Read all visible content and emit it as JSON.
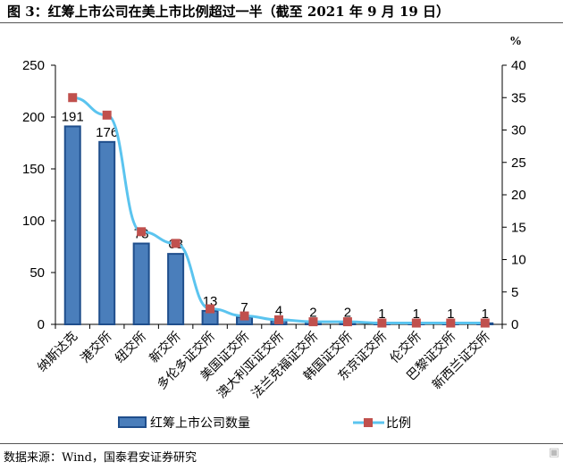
{
  "title": "图 3：红筹上市公司在美上市比例超过一半（截至 2021 年 9 月 19 日）",
  "source": "数据来源：Wind，国泰君安证券研究",
  "watermark": "格隆汇",
  "colors": {
    "bar": "#4a7ebb",
    "bar_border": "#1f4e8c",
    "line": "#5bc4ef",
    "marker": "#c0504d"
  },
  "chart_data": {
    "type": "bar+line",
    "categories": [
      "纳斯达克",
      "港交所",
      "纽交所",
      "新交所",
      "多伦多证交所",
      "美国证交所",
      "澳大利亚证交所",
      "法兰克福证交所",
      "韩国证交所",
      "东京证交所",
      "伦交所",
      "巴黎证交所",
      "新西兰证交所"
    ],
    "series": [
      {
        "name": "红筹上市公司数量",
        "type": "bar",
        "axis": "left",
        "values": [
          191,
          176,
          78,
          68,
          13,
          7,
          4,
          2,
          2,
          1,
          1,
          1,
          1
        ]
      },
      {
        "name": "比例",
        "type": "line",
        "axis": "right",
        "values": [
          35.0,
          32.3,
          14.3,
          12.5,
          2.4,
          1.3,
          0.7,
          0.4,
          0.4,
          0.2,
          0.2,
          0.2,
          0.2
        ]
      }
    ],
    "left_axis": {
      "ylim": [
        0,
        250
      ],
      "ticks": [
        0,
        50,
        100,
        150,
        200,
        250
      ]
    },
    "right_axis": {
      "label": "%",
      "ylim": [
        0,
        40
      ],
      "ticks": [
        0,
        5,
        10,
        15,
        20,
        25,
        30,
        35,
        40
      ]
    },
    "legend": {
      "position": "bottom",
      "entries": [
        "红筹上市公司数量",
        "比例"
      ]
    }
  }
}
